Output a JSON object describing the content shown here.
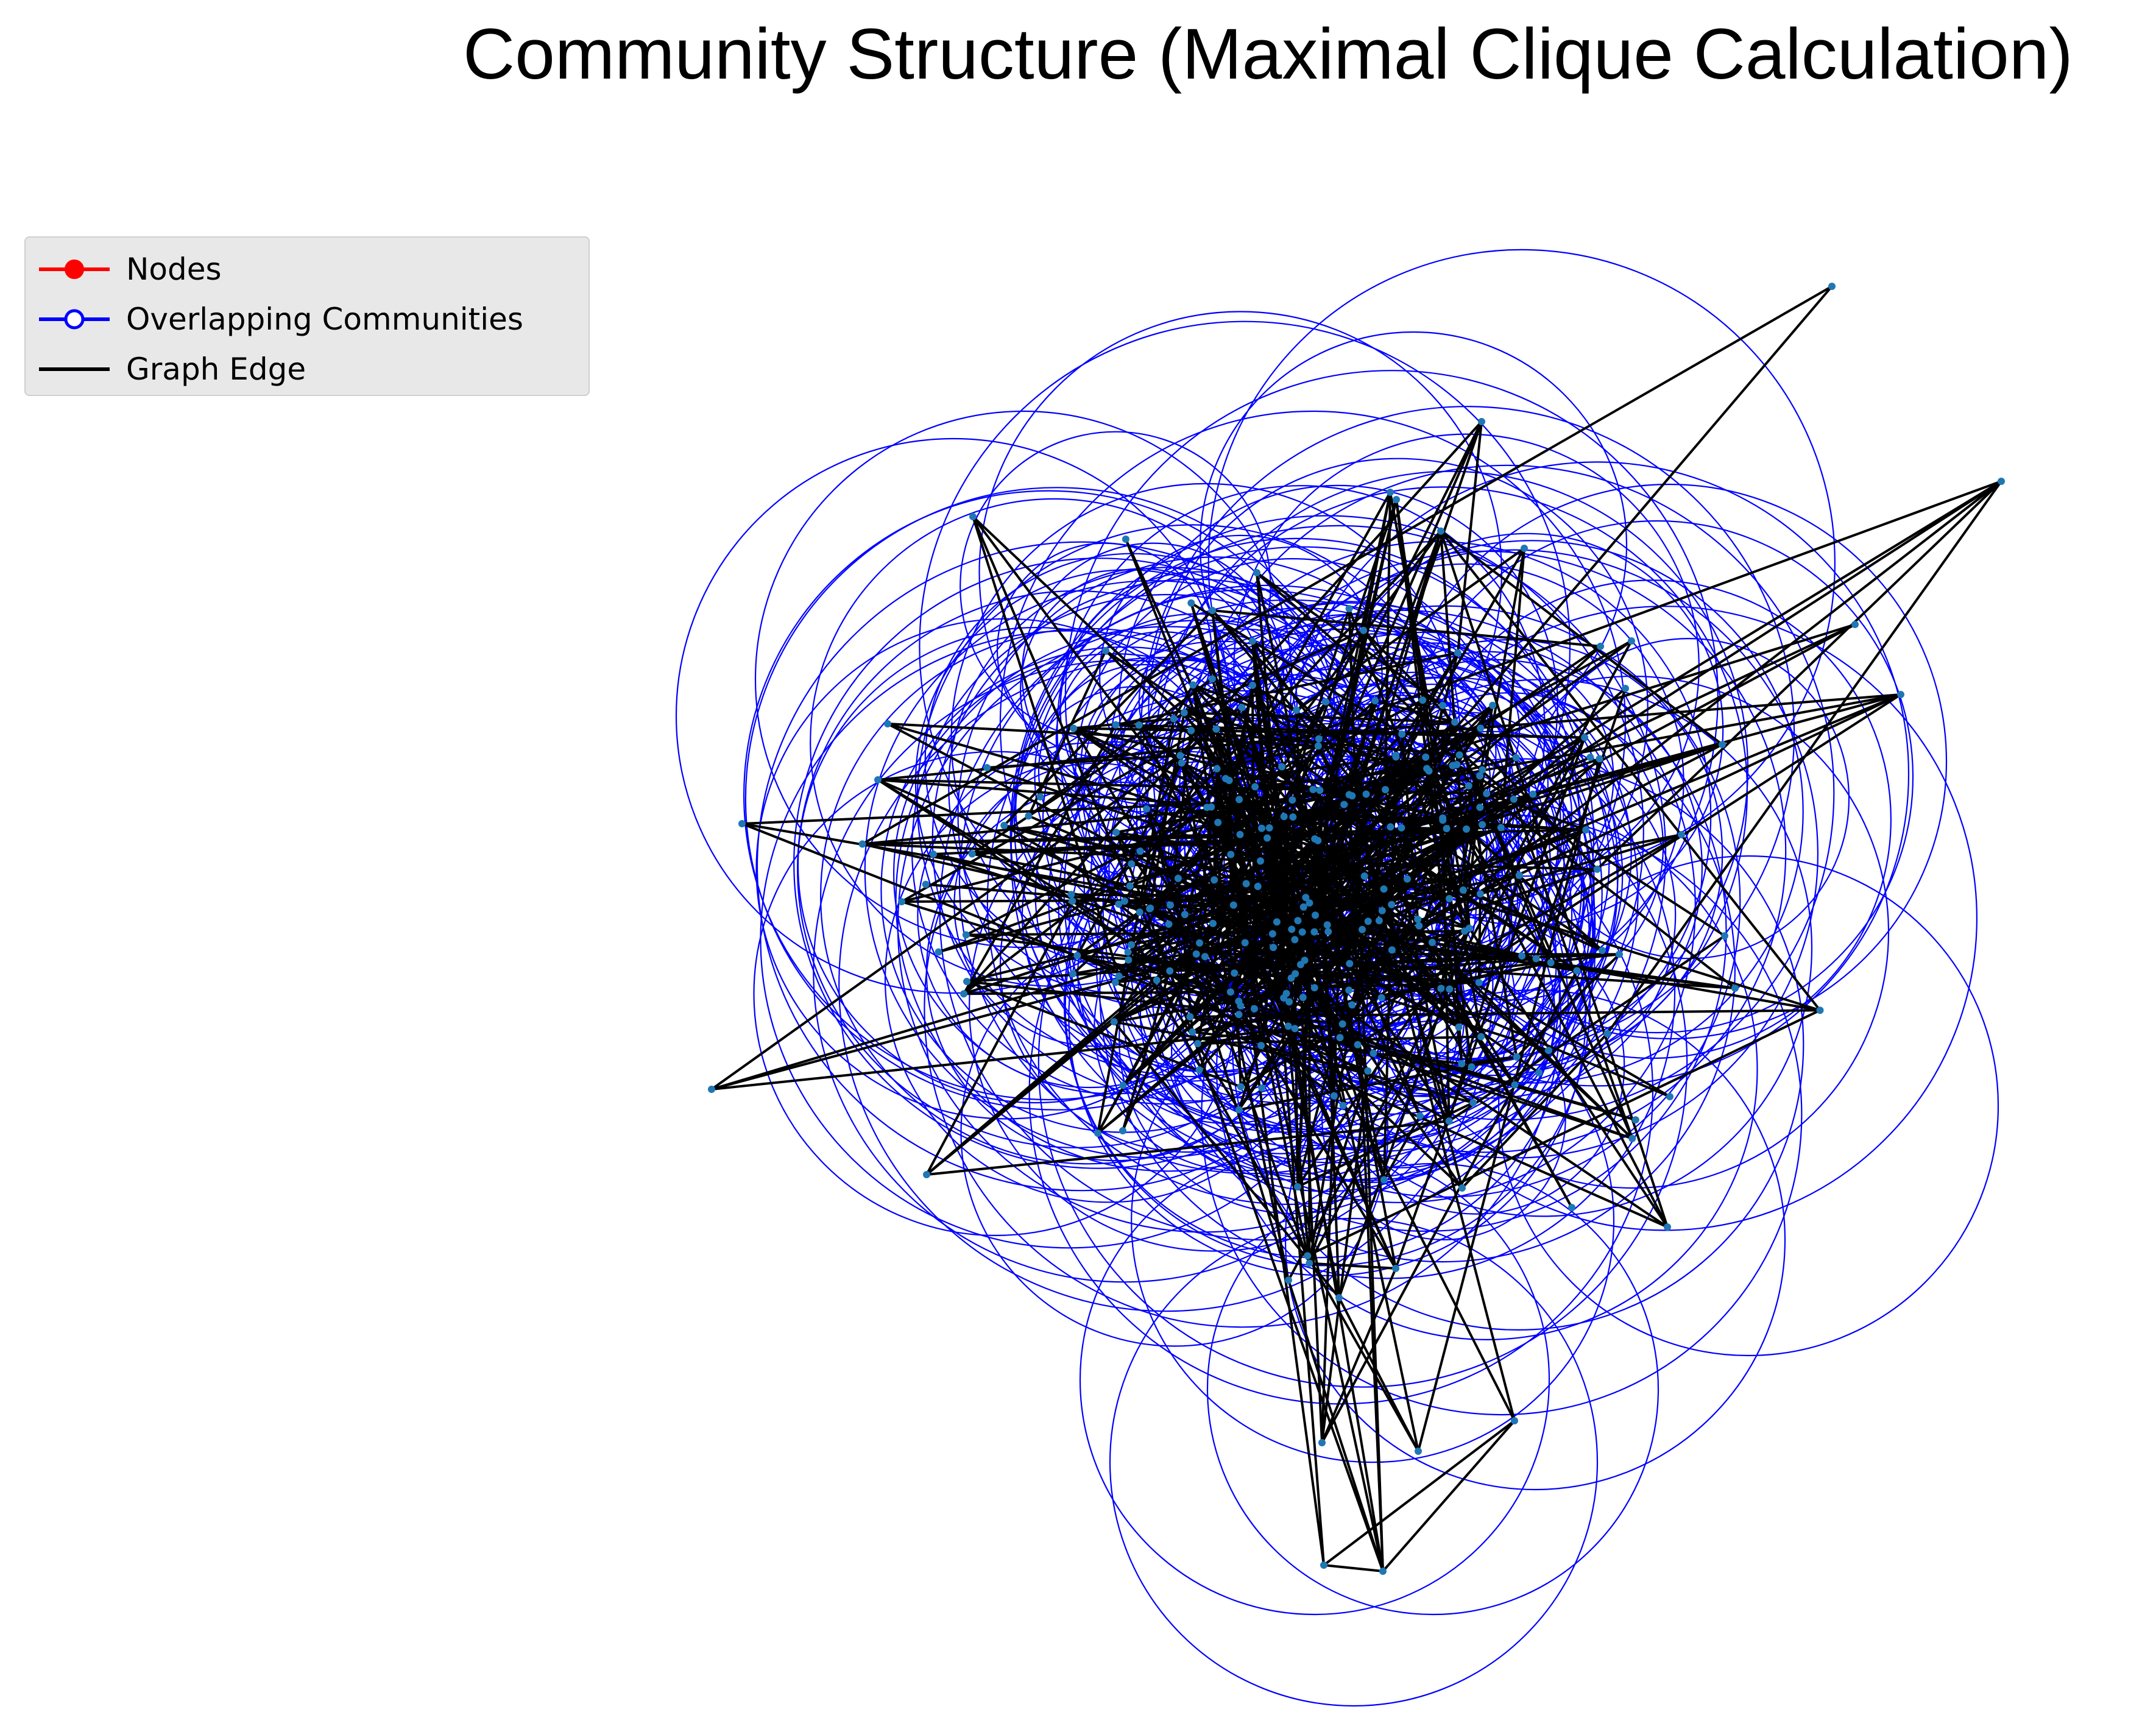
{
  "title": "Community Structure (Maximal Clique Calculation)",
  "legend": [
    {
      "label": "Nodes",
      "marker": "filled-circle",
      "color": "#ff0000"
    },
    {
      "label": "Overlapping Communities",
      "marker": "open-circle",
      "color": "#0000ff"
    },
    {
      "label": "Graph Edge",
      "marker": "line",
      "color": "#000000"
    }
  ],
  "colors": {
    "node": "#1f77b4",
    "edge": "#000000",
    "community": "#0000ff"
  }
}
